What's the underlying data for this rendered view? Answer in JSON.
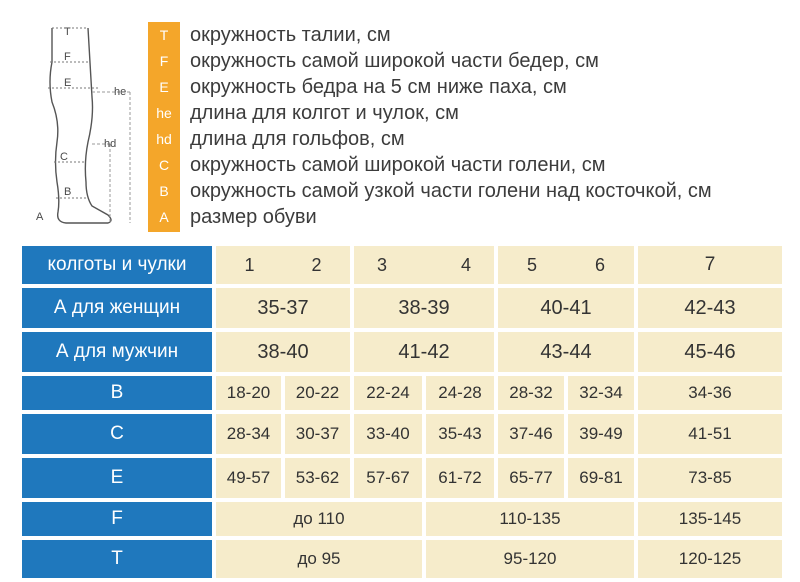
{
  "figure": {
    "labels": [
      "T",
      "F",
      "E",
      "he",
      "hd",
      "C",
      "B",
      "A"
    ]
  },
  "legend": [
    {
      "code": "T",
      "text": "окружность талии, см"
    },
    {
      "code": "F",
      "text": "окружность самой широкой части бедер, см"
    },
    {
      "code": "E",
      "text": "окружность бедра на 5 см ниже паха, см"
    },
    {
      "code": "he",
      "text": "длина для колгот и чулок, см"
    },
    {
      "code": "hd",
      "text": "длина для гольфов, см"
    },
    {
      "code": "C",
      "text": "окружность самой широкой части голени, см"
    },
    {
      "code": "B",
      "text": "окружность самой узкой части голени над косточкой, см"
    },
    {
      "code": "A",
      "text": "размер обуви"
    }
  ],
  "colors": {
    "header_blue": "#1f78bd",
    "cell_beige": "#f6eccb",
    "code_orange": "#f4a62a"
  },
  "table": {
    "header": {
      "label": "колготы и чулки",
      "sizes": [
        "1",
        "2",
        "3",
        "4",
        "5",
        "6",
        "7"
      ]
    },
    "rows": [
      {
        "label": "А для женщин",
        "values": [
          "35-37",
          "38-39",
          "40-41",
          "42-43"
        ]
      },
      {
        "label": "А для мужчин",
        "values": [
          "38-40",
          "41-42",
          "43-44",
          "45-46"
        ]
      },
      {
        "label": "B",
        "values": [
          "18-20",
          "20-22",
          "22-24",
          "24-28",
          "28-32",
          "32-34",
          "34-36"
        ]
      },
      {
        "label": "C",
        "values": [
          "28-34",
          "30-37",
          "33-40",
          "35-43",
          "37-46",
          "39-49",
          "41-51"
        ]
      },
      {
        "label": "E",
        "values": [
          "49-57",
          "53-62",
          "57-67",
          "61-72",
          "65-77",
          "69-81",
          "73-85"
        ]
      },
      {
        "label": "F",
        "values": [
          "до 110",
          "110-135",
          "135-145"
        ]
      },
      {
        "label": "T",
        "values": [
          "до 95",
          "95-120",
          "120-125"
        ]
      }
    ]
  }
}
